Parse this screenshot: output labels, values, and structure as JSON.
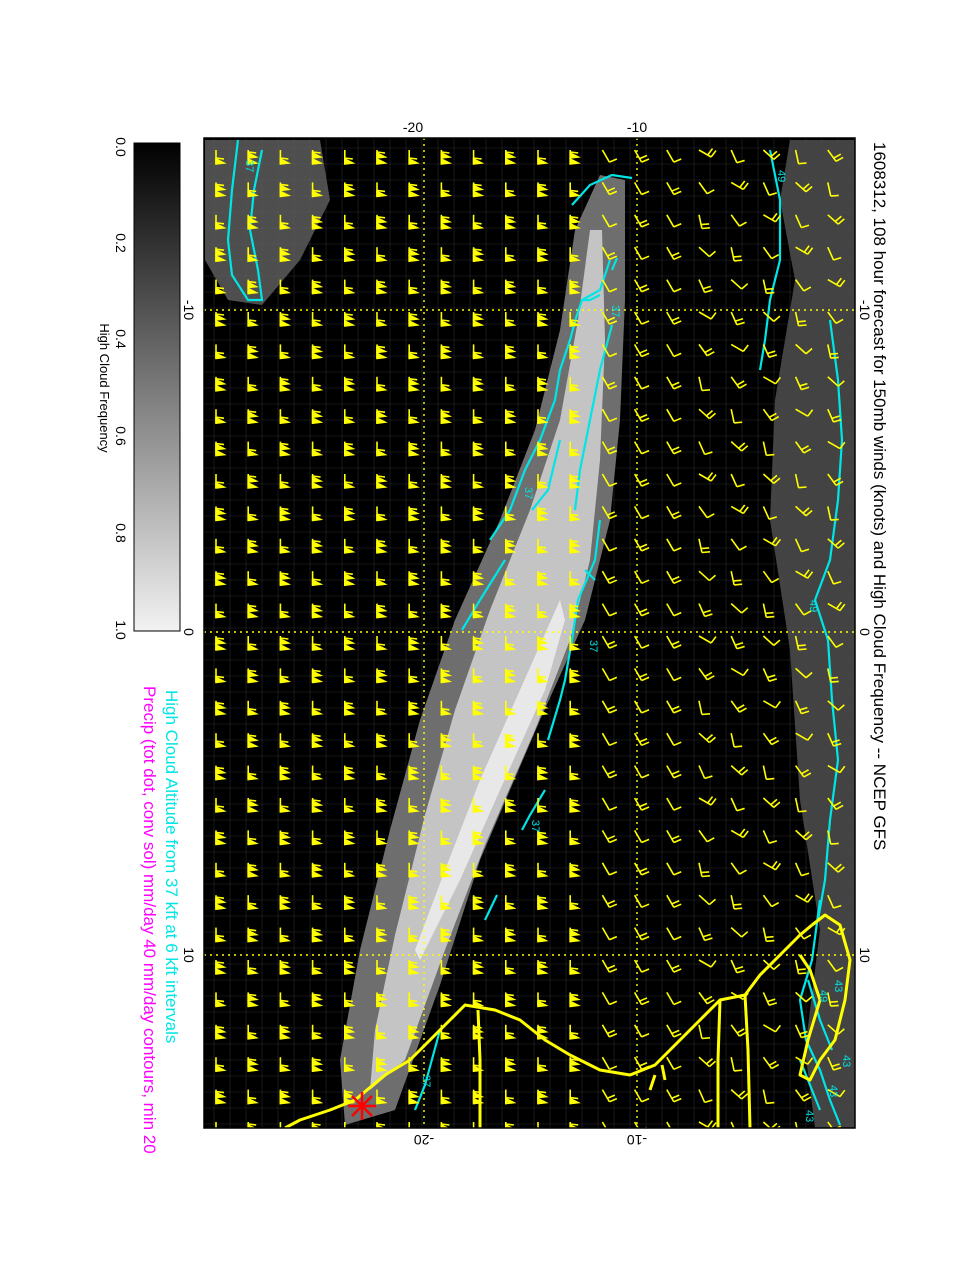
{
  "title": "1608312, 108 hour forecast for 150mb winds (knots) and High Cloud Frequency -- NCEP GFS",
  "subtitle_cloud_altitude": "High Cloud Altitude from 37 kft at 6 kft intervals",
  "subtitle_precip": "Precip (tot dot, conv sol) mm/day 40 mm/day contours, min 20",
  "colorbar": {
    "label": "High Cloud Frequency",
    "ticks": [
      "0.0",
      "0.2",
      "0.4",
      "0.6",
      "0.8",
      "1.0"
    ]
  },
  "axis_top_ticks": [
    "-20",
    "-10"
  ],
  "axis_bottom_ticks": [
    "-20",
    "-10"
  ],
  "axis_left_ticks": [
    "-10",
    "0",
    "10"
  ],
  "axis_right_ticks": [
    "-10",
    "0",
    "10"
  ],
  "contour_labels": [
    "37",
    "37",
    "37",
    "37",
    "37",
    "37",
    "43",
    "49",
    "49",
    "49",
    "43",
    "43",
    "43"
  ],
  "colors": {
    "wind_barbs": "#ffff00",
    "contours": "#00e5e5",
    "coastline": "#ffff00",
    "grid": "#ffff00",
    "storm_marker": "#ff0000",
    "subtitle_cloud": "#00e5e5",
    "subtitle_precip": "#ff00ff",
    "background_field": "#000000"
  },
  "icons": {
    "storm_marker": "asterisk-star-icon",
    "wind_barb": "wind-barb-icon"
  }
}
